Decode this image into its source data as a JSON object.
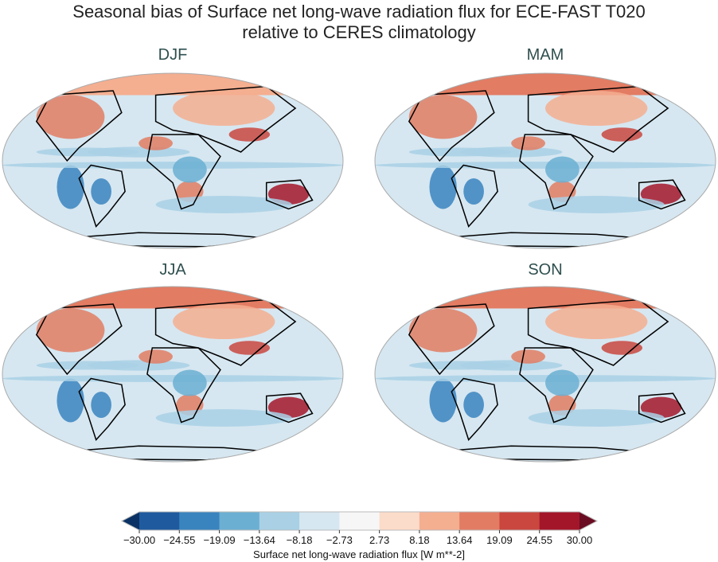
{
  "title_line1": "Seasonal bias of Surface net long-wave radiation flux for ECE-FAST T020",
  "title_line2": "relative to CERES climatology",
  "panels": [
    {
      "season": "DJF"
    },
    {
      "season": "MAM"
    },
    {
      "season": "JJA"
    },
    {
      "season": "SON"
    }
  ],
  "colorbar": {
    "label": "Surface net long-wave radiation flux [W m**-2]",
    "ticks": [
      "−30.00",
      "−24.55",
      "−19.09",
      "−13.64",
      "−8.18",
      "−2.73",
      "2.73",
      "8.18",
      "13.64",
      "19.09",
      "24.55",
      "30.00"
    ],
    "colors": [
      "#1f5a9e",
      "#3984bf",
      "#6bafd2",
      "#a9d0e5",
      "#d6e7f1",
      "#f6f6f6",
      "#fbdbc9",
      "#f4ae90",
      "#e27c63",
      "#c9473f",
      "#a3162a"
    ],
    "under_color": "#0a3264",
    "over_color": "#6a0d22",
    "colormap": "RdBu_r"
  }
}
